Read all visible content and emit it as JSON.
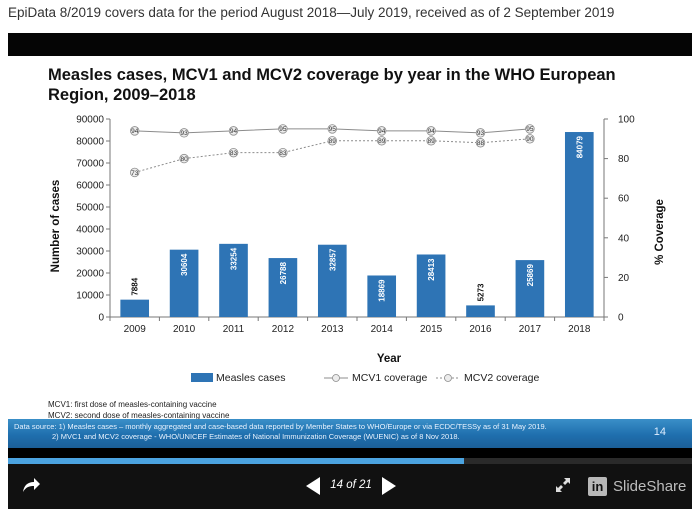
{
  "caption": "EpiData 8/2019 covers data for the period August 2018—July 2019, received as of 2 September 2019",
  "slide": {
    "title": "Measles cases, MCV1 and MCV2 coverage by year in the WHO European Region, 2009–2018",
    "footnote_mcv1": "MCV1: first dose of measles-containing vaccine",
    "footnote_mcv2": "MCV2: second dose of measles-containing vaccine",
    "source_line1": "Data source: 1) Measles cases – monthly aggregated and case-based data reported by Member States to WHO/Europe or via ECDC/TESSy as of  31 May 2019.",
    "source_line2": "2) MVC1 and MCV2 coverage - WHO/UNICEF Estimates of National Immunization Coverage (WUENIC)  as of 8 Nov 2018.",
    "slide_number": "14"
  },
  "chart_data": {
    "type": "bar",
    "categories": [
      "2009",
      "2010",
      "2011",
      "2012",
      "2013",
      "2014",
      "2015",
      "2016",
      "2017",
      "2018"
    ],
    "series": [
      {
        "name": "Measles cases",
        "type": "bar",
        "axis": "left",
        "color": "#2e74b5",
        "values": [
          7884,
          30604,
          33254,
          26788,
          32857,
          18869,
          28413,
          5273,
          25869,
          84079
        ]
      },
      {
        "name": "MCV1 coverage",
        "type": "line",
        "axis": "right",
        "color": "#a6a6a6",
        "values": [
          94,
          93,
          94,
          95,
          95,
          94,
          94,
          93,
          95,
          null
        ]
      },
      {
        "name": "MCV2 coverage",
        "type": "line",
        "axis": "right",
        "color": "#bfbfbf",
        "values": [
          73,
          80,
          83,
          83,
          89,
          89,
          89,
          88,
          90,
          null
        ]
      }
    ],
    "xlabel": "Year",
    "ylabel": "Number of cases",
    "y2label": "% Coverage",
    "ylim": [
      0,
      90000
    ],
    "y2lim": [
      0,
      100
    ],
    "yticks": [
      "0",
      "10000",
      "20000",
      "30000",
      "40000",
      "50000",
      "60000",
      "70000",
      "80000",
      "90000"
    ],
    "y2ticks": [
      "0",
      "20",
      "40",
      "60",
      "80",
      "100"
    ],
    "legend_position": "bottom"
  },
  "player": {
    "counter": "14 of 21",
    "current_page": 14,
    "total_pages": 21,
    "progress": 0.6667,
    "brand_mark": "in",
    "brand_name": "SlideShare"
  },
  "colors": {
    "bar": "#2e74b5",
    "source_band": "#1f6fae",
    "progress": "#4ba3e0"
  }
}
